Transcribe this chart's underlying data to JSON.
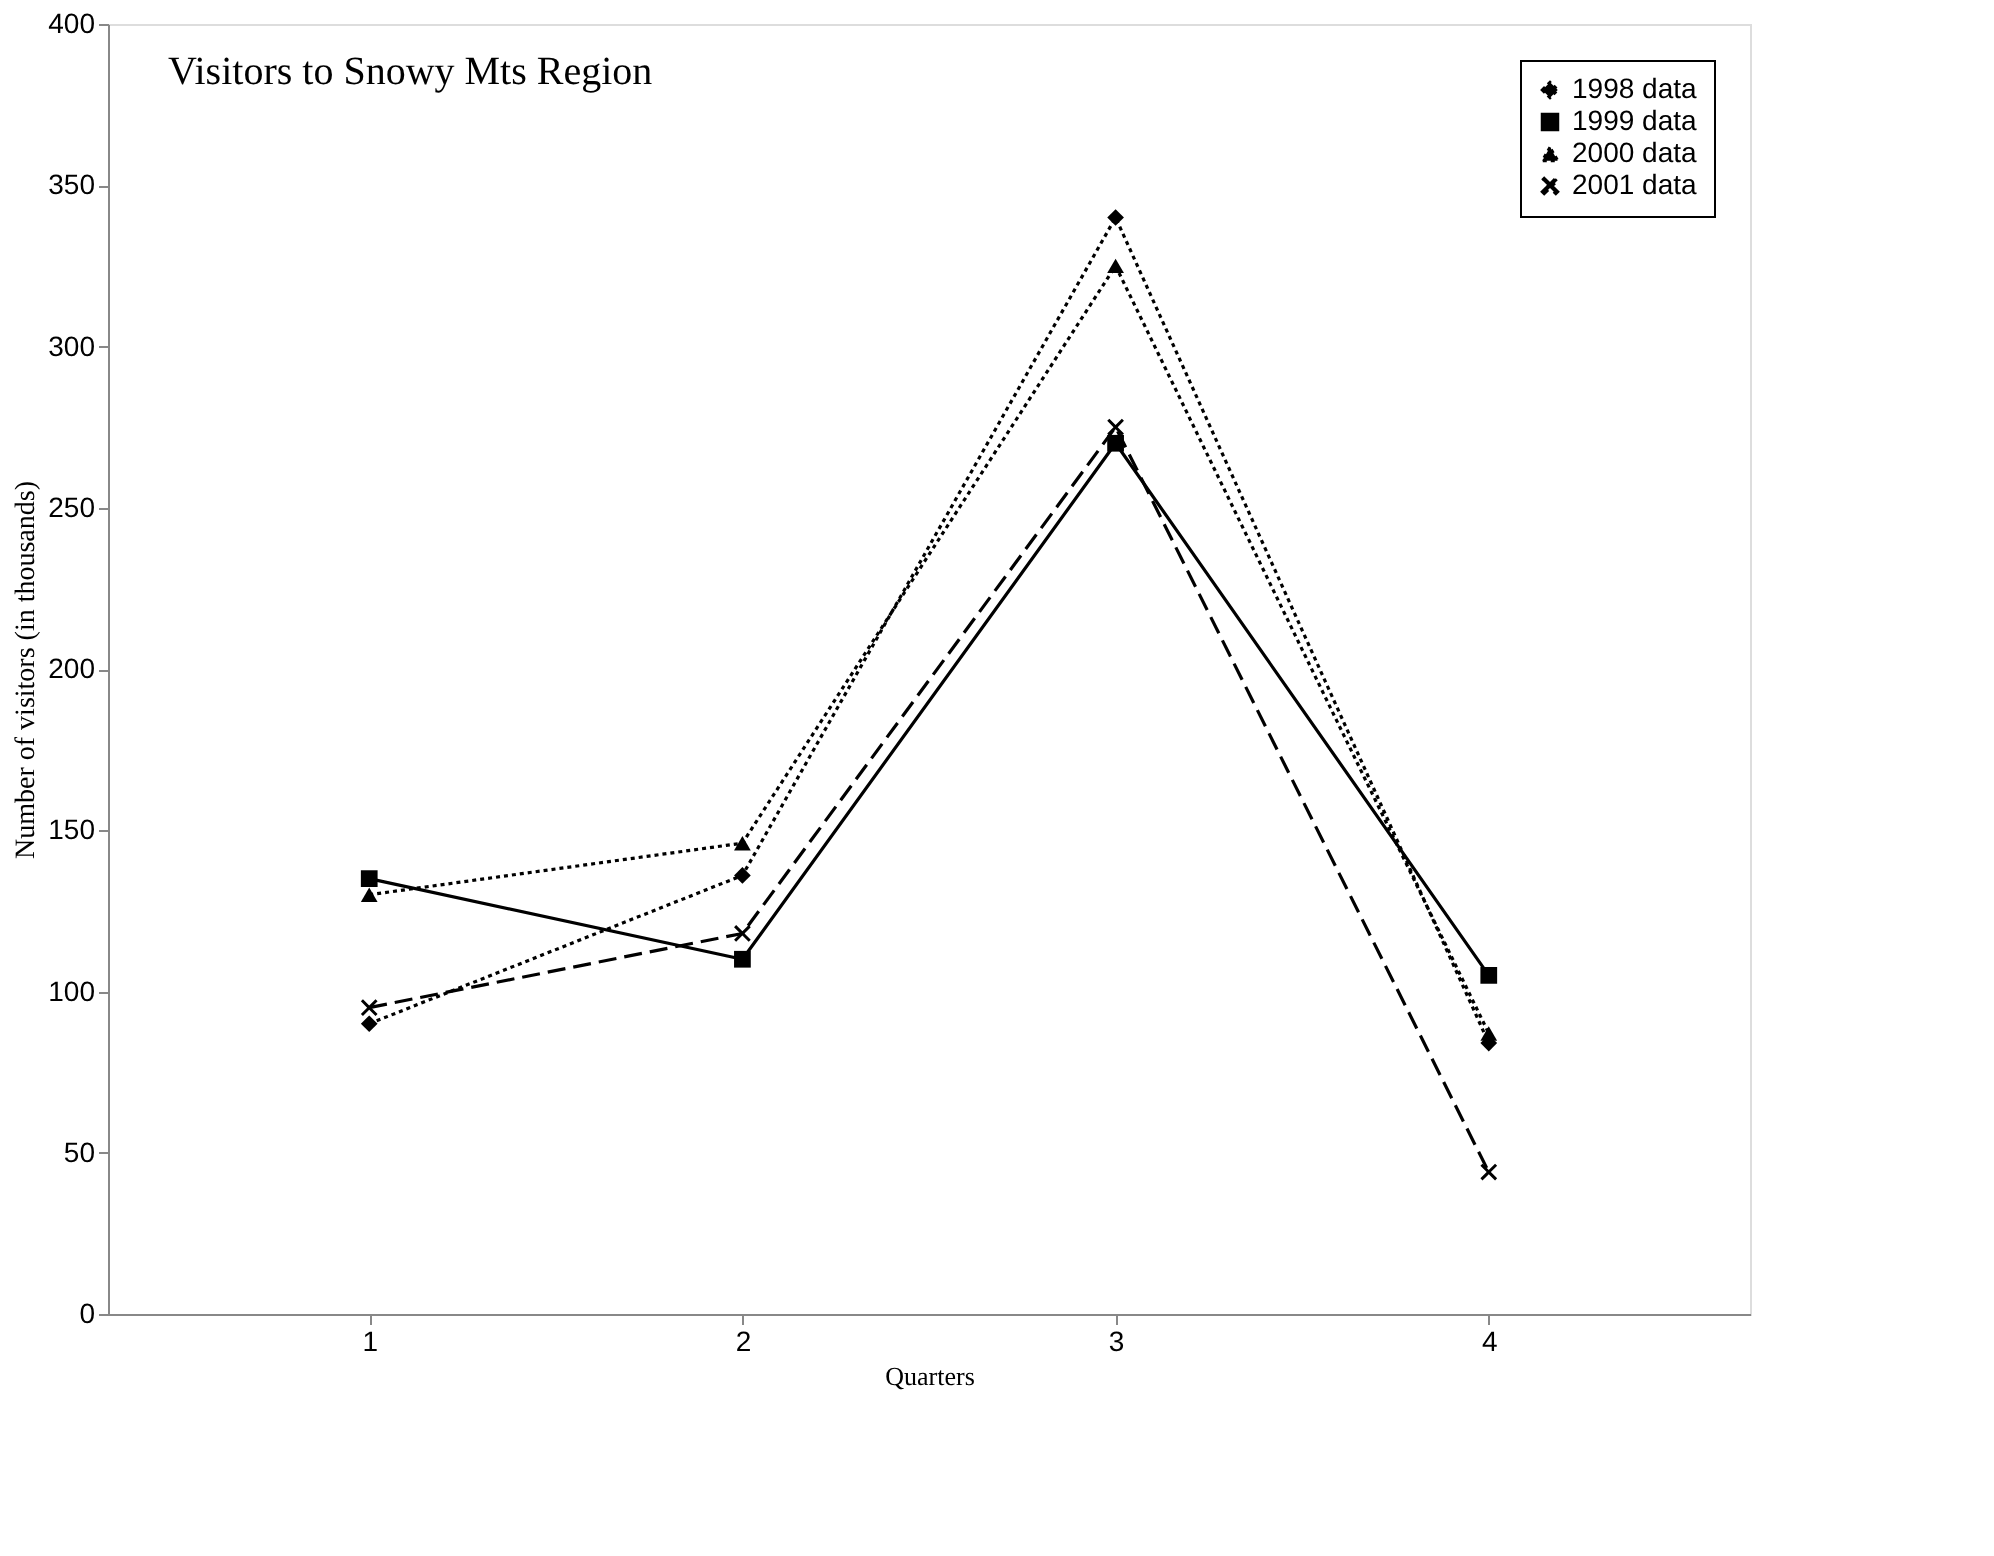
{
  "chart_data": {
    "type": "line",
    "title": "Visitors to Snowy Mts Region",
    "xlabel": "Quarters",
    "ylabel": "Number of visitors (in thousands)",
    "categories": [
      "1",
      "2",
      "3",
      "4"
    ],
    "series": [
      {
        "name": "1998 data",
        "color": "#000000",
        "values": [
          90,
          136,
          340,
          84
        ],
        "marker": "diamond",
        "line_style": "dotted"
      },
      {
        "name": "1999 data",
        "color": "#000000",
        "values": [
          135,
          110,
          270,
          105
        ],
        "marker": "square",
        "line_style": "solid"
      },
      {
        "name": "2000 data",
        "color": "#000000",
        "values": [
          130,
          146,
          325,
          87
        ],
        "marker": "triangle",
        "line_style": "dotted"
      },
      {
        "name": "2001 data",
        "color": "#000000",
        "values": [
          95,
          118,
          275,
          44
        ],
        "marker": "cross",
        "line_style": "dashed"
      }
    ],
    "ylim": [
      0,
      400
    ],
    "yticks": [
      0,
      50,
      100,
      150,
      200,
      250,
      300,
      350,
      400
    ],
    "grid": false,
    "legend": "top right"
  }
}
